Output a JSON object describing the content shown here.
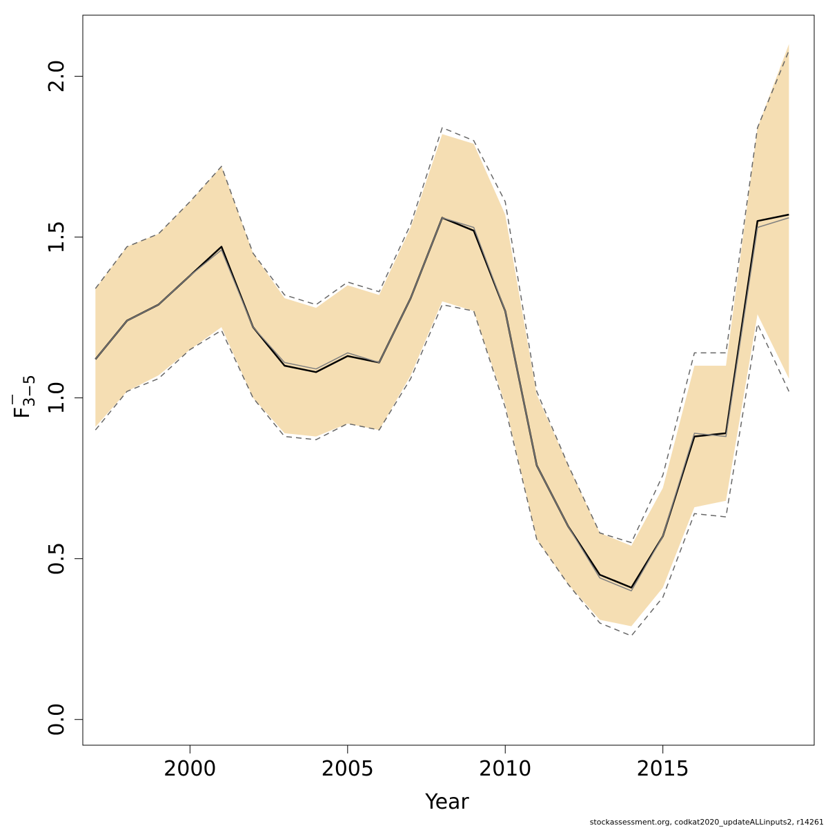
{
  "chart_data": {
    "type": "line",
    "title": "",
    "xlabel": "Year",
    "ylabel": {
      "main": "F",
      "subscript": "3−5"
    },
    "xlim": [
      1996.6,
      2019.8
    ],
    "ylim": [
      -0.08,
      2.19
    ],
    "x_ticks": [
      2000,
      2005,
      2010,
      2015
    ],
    "x_tick_labels": [
      "2000",
      "2005",
      "2010",
      "2015"
    ],
    "y_ticks": [
      0.0,
      0.5,
      1.0,
      1.5,
      2.0
    ],
    "y_tick_labels": [
      "0.0",
      "0.5",
      "1.0",
      "1.5",
      "2.0"
    ],
    "grid": false,
    "colors": {
      "band": "#f5deb3",
      "estimate": "#000000",
      "previous": "#808080",
      "previous_ci": "#666666"
    },
    "x": [
      1997,
      1998,
      1999,
      2000,
      2001,
      2002,
      2003,
      2004,
      2005,
      2006,
      2007,
      2008,
      2009,
      2010,
      2011,
      2012,
      2013,
      2014,
      2015,
      2016,
      2017,
      2018,
      2019
    ],
    "series": [
      {
        "role": "ci_lower",
        "values": [
          0.91,
          1.02,
          1.07,
          1.15,
          1.22,
          1.0,
          0.89,
          0.88,
          0.92,
          0.9,
          1.07,
          1.3,
          1.27,
          0.98,
          0.56,
          0.42,
          0.31,
          0.29,
          0.41,
          0.66,
          0.68,
          1.26,
          1.06
        ]
      },
      {
        "role": "ci_upper",
        "values": [
          1.34,
          1.47,
          1.51,
          1.61,
          1.72,
          1.45,
          1.31,
          1.28,
          1.35,
          1.32,
          1.53,
          1.82,
          1.79,
          1.57,
          1.01,
          0.79,
          0.58,
          0.54,
          0.72,
          1.1,
          1.1,
          1.84,
          2.1
        ]
      },
      {
        "role": "estimate",
        "values": [
          1.12,
          1.24,
          1.29,
          1.38,
          1.47,
          1.22,
          1.1,
          1.08,
          1.13,
          1.11,
          1.31,
          1.56,
          1.52,
          1.27,
          0.79,
          0.6,
          0.45,
          0.41,
          0.57,
          0.88,
          0.89,
          1.55,
          1.57
        ]
      },
      {
        "role": "previous_estimate",
        "values": [
          1.12,
          1.24,
          1.29,
          1.38,
          1.46,
          1.22,
          1.11,
          1.09,
          1.14,
          1.11,
          1.31,
          1.56,
          1.53,
          1.27,
          0.79,
          0.6,
          0.44,
          0.4,
          0.57,
          0.89,
          0.88,
          1.53,
          1.56
        ]
      },
      {
        "role": "previous_ci_lower",
        "values": [
          0.9,
          1.02,
          1.06,
          1.15,
          1.21,
          1.0,
          0.88,
          0.87,
          0.92,
          0.9,
          1.06,
          1.29,
          1.27,
          0.97,
          0.56,
          0.42,
          0.3,
          0.26,
          0.38,
          0.64,
          0.63,
          1.23,
          1.02
        ]
      },
      {
        "role": "previous_ci_upper",
        "values": [
          1.34,
          1.47,
          1.51,
          1.61,
          1.72,
          1.45,
          1.32,
          1.29,
          1.36,
          1.33,
          1.54,
          1.84,
          1.8,
          1.61,
          1.02,
          0.79,
          0.58,
          0.55,
          0.76,
          1.14,
          1.14,
          1.84,
          2.08
        ]
      }
    ]
  },
  "footer": "stockassessment.org, codkat2020_updateALLinputs2, r14261"
}
